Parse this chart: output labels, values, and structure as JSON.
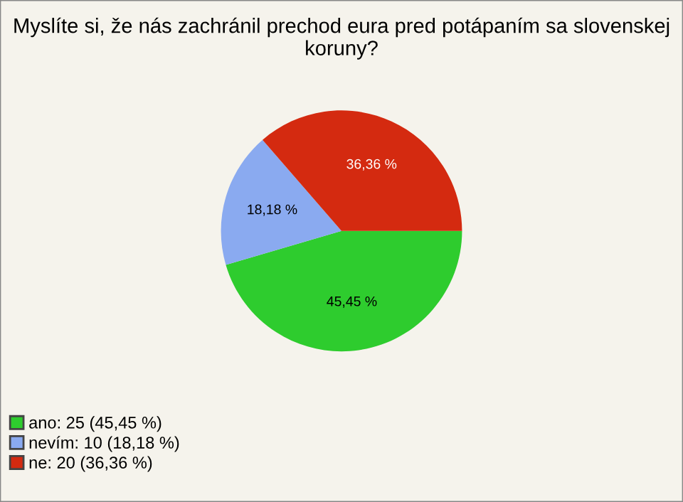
{
  "chart_data": {
    "type": "pie",
    "title": "Myslíte si, že nás zachránil prechod eura pred potápaním sa slovenskej koruny?",
    "categories": [
      "ano: 25 (45,45 %)",
      "nevím: 10 (18,18 %)",
      "ne: 20 (36,36 %)"
    ],
    "values": [
      45.45,
      18.18,
      36.36
    ],
    "value_labels": [
      "45,45 %",
      "18,18 %",
      "36,36 %"
    ],
    "colors": [
      "#2ecc2e",
      "#8aaaf0",
      "#d42a10"
    ],
    "legend": "bottom left"
  }
}
